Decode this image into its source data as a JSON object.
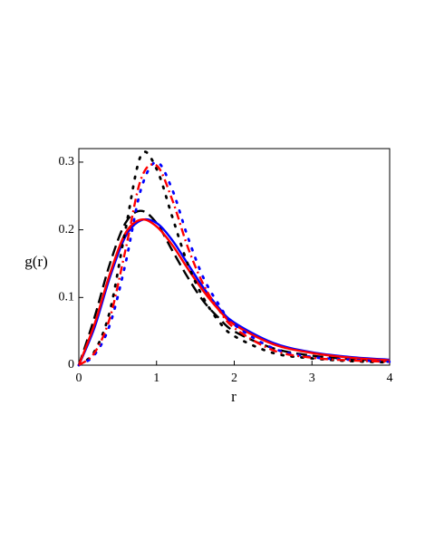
{
  "chart_data": {
    "type": "line",
    "xlabel": "r",
    "ylabel": "g(r)",
    "xlim": [
      0,
      4
    ],
    "ylim": [
      0,
      0.32
    ],
    "xticks": [
      0,
      1,
      2,
      3,
      4
    ],
    "yticks": [
      0,
      0.1,
      0.2,
      0.3
    ],
    "grid": false,
    "x": [
      0,
      0.2,
      0.4,
      0.6,
      0.8,
      1.0,
      1.2,
      1.4,
      1.6,
      1.8,
      2.0,
      2.5,
      3,
      3.5,
      4
    ],
    "series": [
      {
        "color": "#000000",
        "dash": "dashed",
        "values": [
          0,
          0.07,
          0.15,
          0.21,
          0.228,
          0.21,
          0.17,
          0.13,
          0.095,
          0.07,
          0.05,
          0.025,
          0.014,
          0.009,
          0.006
        ]
      },
      {
        "color": "#0000ff",
        "dash": "solid",
        "values": [
          0,
          0.055,
          0.13,
          0.19,
          0.214,
          0.21,
          0.185,
          0.15,
          0.115,
          0.085,
          0.063,
          0.033,
          0.019,
          0.012,
          0.008
        ]
      },
      {
        "color": "#ff0000",
        "dash": "solid",
        "values": [
          0,
          0.06,
          0.135,
          0.195,
          0.215,
          0.205,
          0.178,
          0.143,
          0.11,
          0.082,
          0.06,
          0.031,
          0.018,
          0.011,
          0.007
        ]
      },
      {
        "color": "#000000",
        "dash": "dotted",
        "values": [
          0,
          0.02,
          0.08,
          0.2,
          0.31,
          0.29,
          0.22,
          0.15,
          0.1,
          0.065,
          0.043,
          0.018,
          0.01,
          0.006,
          0.004
        ]
      },
      {
        "color": "#0000ff",
        "dash": "dotted",
        "values": [
          0,
          0.015,
          0.06,
          0.15,
          0.26,
          0.3,
          0.26,
          0.19,
          0.13,
          0.09,
          0.06,
          0.025,
          0.012,
          0.008,
          0.005
        ]
      },
      {
        "color": "#ff0000",
        "dash": "dashdot",
        "values": [
          0,
          0.018,
          0.07,
          0.17,
          0.275,
          0.295,
          0.245,
          0.175,
          0.12,
          0.082,
          0.055,
          0.022,
          0.011,
          0.007,
          0.005
        ]
      }
    ]
  }
}
